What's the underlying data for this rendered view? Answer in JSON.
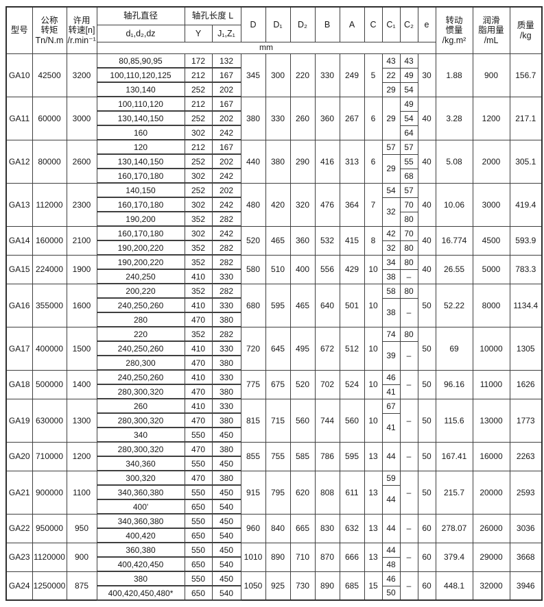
{
  "header": {
    "model": "型号",
    "torque": "公称\n转矩\nTn/N.m",
    "speed": "许用\n转速[n]\n/r.min⁻¹",
    "bore_dia": "轴孔直径",
    "bore_dia_sub": "d₁,d₂,dz",
    "bore_len": "轴孔长度 L",
    "len_y": "Y",
    "len_j": "J₁,Z₁",
    "d": "D",
    "d1": "D₁",
    "d2": "D₂",
    "b": "B",
    "a": "A",
    "c": "C",
    "c1": "C₁",
    "c2": "C₂",
    "e": "e",
    "unit": "mm",
    "inertia": "转动\n惯量\n/kg.m²",
    "grease": "润滑\n脂用量\n/mL",
    "mass": "质量\n/kg"
  },
  "groups": [
    {
      "model": "GA10",
      "torque": "42500",
      "speed": "3200",
      "D": "345",
      "D1": "300",
      "D2": "220",
      "B": "330",
      "A": "249",
      "C": "5",
      "e": "30",
      "inertia": "1.88",
      "grease": "900",
      "mass": "156.7",
      "rows": [
        {
          "bores": "80,85,90,95",
          "y": "172",
          "j": "132"
        },
        {
          "bores": "100,110,120,125",
          "y": "212",
          "j": "167"
        },
        {
          "bores": "130,140",
          "y": "252",
          "j": "202"
        }
      ],
      "c1": [
        {
          "t": "43",
          "s": 1
        },
        {
          "t": "22",
          "s": 1
        },
        {
          "t": "29",
          "s": 1
        }
      ],
      "c2": [
        {
          "t": "43",
          "s": 1
        },
        {
          "t": "49",
          "s": 1
        },
        {
          "t": "54",
          "s": 1
        }
      ]
    },
    {
      "model": "GA11",
      "torque": "60000",
      "speed": "3000",
      "D": "380",
      "D1": "330",
      "D2": "260",
      "B": "360",
      "A": "267",
      "C": "6",
      "e": "40",
      "inertia": "3.28",
      "grease": "1200",
      "mass": "217.1",
      "rows": [
        {
          "bores": "100,110,120",
          "y": "212",
          "j": "167"
        },
        {
          "bores": "130,140,150",
          "y": "252",
          "j": "202"
        },
        {
          "bores": "160",
          "y": "302",
          "j": "242"
        }
      ],
      "c1": [
        {
          "t": "29",
          "s": 3
        }
      ],
      "c2": [
        {
          "t": "49",
          "s": 1
        },
        {
          "t": "54",
          "s": 1
        },
        {
          "t": "64",
          "s": 1
        }
      ]
    },
    {
      "model": "GA12",
      "torque": "80000",
      "speed": "2600",
      "D": "440",
      "D1": "380",
      "D2": "290",
      "B": "416",
      "A": "313",
      "C": "6",
      "e": "40",
      "inertia": "5.08",
      "grease": "2000",
      "mass": "305.1",
      "rows": [
        {
          "bores": "120",
          "y": "212",
          "j": "167"
        },
        {
          "bores": "130,140,150",
          "y": "252",
          "j": "202"
        },
        {
          "bores": "160,170,180",
          "y": "302",
          "j": "242"
        }
      ],
      "c1": [
        {
          "t": "57",
          "s": 1
        },
        {
          "t": "29",
          "s": 2
        }
      ],
      "c2": [
        {
          "t": "57",
          "s": 1
        },
        {
          "t": "55",
          "s": 1
        },
        {
          "t": "68",
          "s": 1
        }
      ]
    },
    {
      "model": "GA13",
      "torque": "112000",
      "speed": "2300",
      "D": "480",
      "D1": "420",
      "D2": "320",
      "B": "476",
      "A": "364",
      "C": "7",
      "e": "40",
      "inertia": "10.06",
      "grease": "3000",
      "mass": "419.4",
      "rows": [
        {
          "bores": "140,150",
          "y": "252",
          "j": "202"
        },
        {
          "bores": "160,170,180",
          "y": "302",
          "j": "242"
        },
        {
          "bores": "190,200",
          "y": "352",
          "j": "282"
        }
      ],
      "c1": [
        {
          "t": "54",
          "s": 1
        },
        {
          "t": "32",
          "s": 2
        }
      ],
      "c2": [
        {
          "t": "57",
          "s": 1
        },
        {
          "t": "70",
          "s": 1
        },
        {
          "t": "80",
          "s": 1
        }
      ]
    },
    {
      "model": "GA14",
      "torque": "160000",
      "speed": "2100",
      "D": "520",
      "D1": "465",
      "D2": "360",
      "B": "532",
      "A": "415",
      "C": "8",
      "e": "40",
      "inertia": "16.774",
      "grease": "4500",
      "mass": "593.9",
      "rows": [
        {
          "bores": "160,170,180",
          "y": "302",
          "j": "242"
        },
        {
          "bores": "190,200,220",
          "y": "352",
          "j": "282"
        }
      ],
      "c1": [
        {
          "t": "42",
          "s": 1
        },
        {
          "t": "32",
          "s": 1
        }
      ],
      "c2": [
        {
          "t": "70",
          "s": 1
        },
        {
          "t": "80",
          "s": 1
        }
      ]
    },
    {
      "model": "GA15",
      "torque": "224000",
      "speed": "1900",
      "D": "580",
      "D1": "510",
      "D2": "400",
      "B": "556",
      "A": "429",
      "C": "10",
      "e": "40",
      "inertia": "26.55",
      "grease": "5000",
      "mass": "783.3",
      "rows": [
        {
          "bores": "190,200,220",
          "y": "352",
          "j": "282"
        },
        {
          "bores": "240,250",
          "y": "410",
          "j": "330"
        }
      ],
      "c1": [
        {
          "t": "34",
          "s": 1
        },
        {
          "t": "38",
          "s": 1
        }
      ],
      "c2": [
        {
          "t": "80",
          "s": 1
        },
        {
          "t": "–",
          "s": 1
        }
      ]
    },
    {
      "model": "GA16",
      "torque": "355000",
      "speed": "1600",
      "D": "680",
      "D1": "595",
      "D2": "465",
      "B": "640",
      "A": "501",
      "C": "10",
      "e": "50",
      "inertia": "52.22",
      "grease": "8000",
      "mass": "1134.4",
      "rows": [
        {
          "bores": "200,220",
          "y": "352",
          "j": "282"
        },
        {
          "bores": "240,250,260",
          "y": "410",
          "j": "330"
        },
        {
          "bores": "280",
          "y": "470",
          "j": "380"
        }
      ],
      "c1": [
        {
          "t": "58",
          "s": 1
        },
        {
          "t": "38",
          "s": 2
        }
      ],
      "c2": [
        {
          "t": "80",
          "s": 1
        },
        {
          "t": "–",
          "s": 2
        }
      ]
    },
    {
      "model": "GA17",
      "torque": "400000",
      "speed": "1500",
      "D": "720",
      "D1": "645",
      "D2": "495",
      "B": "672",
      "A": "512",
      "C": "10",
      "e": "50",
      "inertia": "69",
      "grease": "10000",
      "mass": "1305",
      "rows": [
        {
          "bores": "220",
          "y": "352",
          "j": "282"
        },
        {
          "bores": "240,250,260",
          "y": "410",
          "j": "330"
        },
        {
          "bores": "280,300",
          "y": "470",
          "j": "380"
        }
      ],
      "c1": [
        {
          "t": "74",
          "s": 1
        },
        {
          "t": "39",
          "s": 2
        }
      ],
      "c2": [
        {
          "t": "80",
          "s": 1
        },
        {
          "t": "–",
          "s": 2
        }
      ]
    },
    {
      "model": "GA18",
      "torque": "500000",
      "speed": "1400",
      "D": "775",
      "D1": "675",
      "D2": "520",
      "B": "702",
      "A": "524",
      "C": "10",
      "e": "50",
      "inertia": "96.16",
      "grease": "11000",
      "mass": "1626",
      "rows": [
        {
          "bores": "240,250,260",
          "y": "410",
          "j": "330"
        },
        {
          "bores": "280,300,320",
          "y": "470",
          "j": "380"
        }
      ],
      "c1": [
        {
          "t": "46",
          "s": 1
        },
        {
          "t": "41",
          "s": 1
        }
      ],
      "c2": [
        {
          "t": "–",
          "s": 2
        }
      ]
    },
    {
      "model": "GA19",
      "torque": "630000",
      "speed": "1300",
      "D": "815",
      "D1": "715",
      "D2": "560",
      "B": "744",
      "A": "560",
      "C": "10",
      "e": "50",
      "inertia": "115.6",
      "grease": "13000",
      "mass": "1773",
      "rows": [
        {
          "bores": "260",
          "y": "410",
          "j": "330"
        },
        {
          "bores": "280,300,320",
          "y": "470",
          "j": "380"
        },
        {
          "bores": "340",
          "y": "550",
          "j": "450"
        }
      ],
      "c1": [
        {
          "t": "67",
          "s": 1
        },
        {
          "t": "41",
          "s": 2
        }
      ],
      "c2": [
        {
          "t": "–",
          "s": 3
        }
      ]
    },
    {
      "model": "GA20",
      "torque": "710000",
      "speed": "1200",
      "D": "855",
      "D1": "755",
      "D2": "585",
      "B": "786",
      "A": "595",
      "C": "13",
      "e": "50",
      "inertia": "167.41",
      "grease": "16000",
      "mass": "2263",
      "rows": [
        {
          "bores": "280,300,320",
          "y": "470",
          "j": "380"
        },
        {
          "bores": "340,360",
          "y": "550",
          "j": "450"
        }
      ],
      "c1": [
        {
          "t": "44",
          "s": 2
        }
      ],
      "c2": [
        {
          "t": "–",
          "s": 2
        }
      ]
    },
    {
      "model": "GA21",
      "torque": "900000",
      "speed": "1100",
      "D": "915",
      "D1": "795",
      "D2": "620",
      "B": "808",
      "A": "611",
      "C": "13",
      "e": "50",
      "inertia": "215.7",
      "grease": "20000",
      "mass": "2593",
      "rows": [
        {
          "bores": "300,320",
          "y": "470",
          "j": "380"
        },
        {
          "bores": "340,360,380",
          "y": "550",
          "j": "450"
        },
        {
          "bores": "400'",
          "y": "650",
          "j": "540"
        }
      ],
      "c1": [
        {
          "t": "59",
          "s": 1
        },
        {
          "t": "44",
          "s": 2
        }
      ],
      "c2": [
        {
          "t": "–",
          "s": 3
        }
      ]
    },
    {
      "model": "GA22",
      "torque": "950000",
      "speed": "950",
      "D": "960",
      "D1": "840",
      "D2": "665",
      "B": "830",
      "A": "632",
      "C": "13",
      "e": "60",
      "inertia": "278.07",
      "grease": "26000",
      "mass": "3036",
      "rows": [
        {
          "bores": "340,360,380",
          "y": "550",
          "j": "450"
        },
        {
          "bores": "400,420",
          "y": "650",
          "j": "540"
        }
      ],
      "c1": [
        {
          "t": "44",
          "s": 2
        }
      ],
      "c2": [
        {
          "t": "–",
          "s": 2
        }
      ]
    },
    {
      "model": "GA23",
      "torque": "1120000",
      "speed": "900",
      "D": "1010",
      "D1": "890",
      "D2": "710",
      "B": "870",
      "A": "666",
      "C": "13",
      "e": "60",
      "inertia": "379.4",
      "grease": "29000",
      "mass": "3668",
      "rows": [
        {
          "bores": "360,380",
          "y": "550",
          "j": "450"
        },
        {
          "bores": "400,420,450",
          "y": "650",
          "j": "540"
        }
      ],
      "c1": [
        {
          "t": "44",
          "s": 1
        },
        {
          "t": "48",
          "s": 1
        }
      ],
      "c2": [
        {
          "t": "–",
          "s": 2
        }
      ]
    },
    {
      "model": "GA24",
      "torque": "1250000",
      "speed": "875",
      "D": "1050",
      "D1": "925",
      "D2": "730",
      "B": "890",
      "A": "685",
      "C": "15",
      "e": "60",
      "inertia": "448.1",
      "grease": "32000",
      "mass": "3946",
      "rows": [
        {
          "bores": "380",
          "y": "550",
          "j": "450"
        },
        {
          "bores": "400,420,450,480*",
          "y": "650",
          "j": "540"
        }
      ],
      "c1": [
        {
          "t": "46",
          "s": 1
        },
        {
          "t": "50",
          "s": 1
        }
      ],
      "c2": [
        {
          "t": "–",
          "s": 2
        }
      ]
    }
  ]
}
